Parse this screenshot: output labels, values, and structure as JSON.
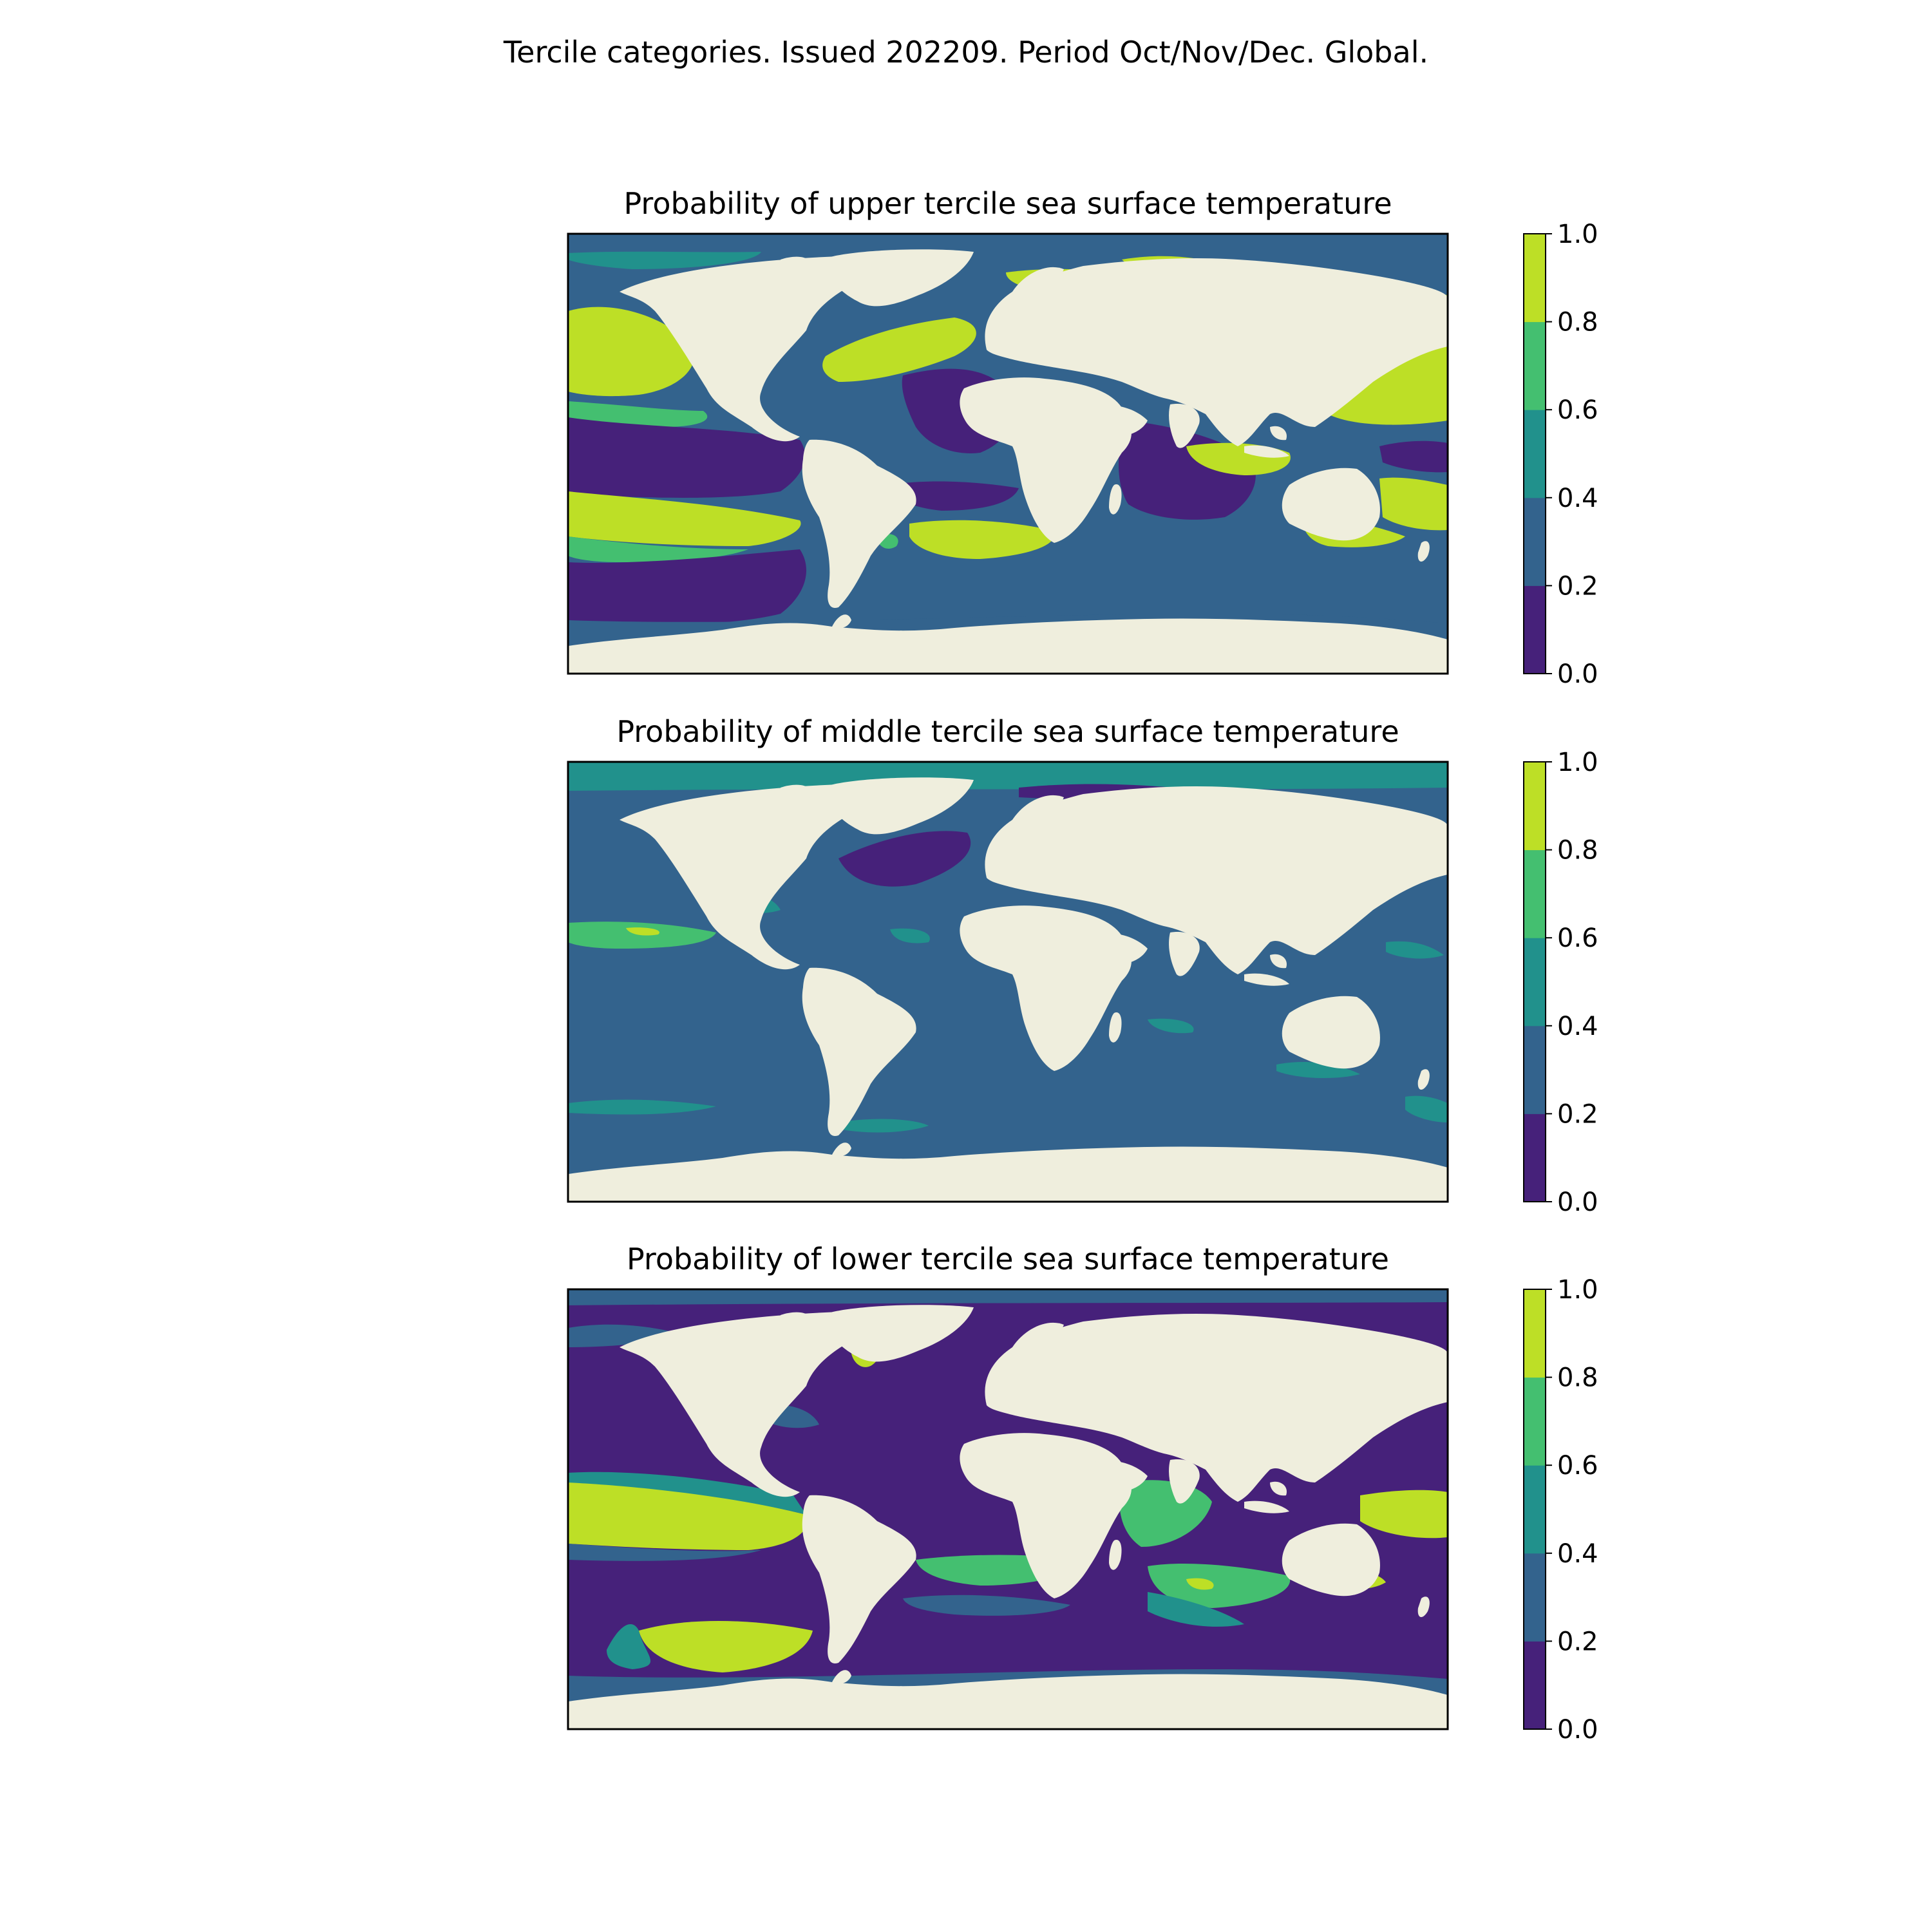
{
  "figure": {
    "title": "Tercile categories. Issued 202209. Period Oct/Nov/Dec. Global."
  },
  "colors": {
    "land": "#efeedd",
    "levels": [
      "#46217a",
      "#33638d",
      "#21918c",
      "#44bf70",
      "#bddf26"
    ]
  },
  "colorbar": {
    "ticks": [
      "0.0",
      "0.2",
      "0.4",
      "0.6",
      "0.8",
      "1.0"
    ]
  },
  "chart_data": [
    {
      "type": "heatmap",
      "title": "Probability of upper tercile sea surface temperature",
      "value_range": [
        0.0,
        1.0
      ],
      "levels": [
        0.0,
        0.2,
        0.4,
        0.6,
        0.8,
        1.0
      ],
      "regions": [
        {
          "area": "North Pacific",
          "level": 0.9
        },
        {
          "area": "Eastern tropical Pacific",
          "level": 0.1
        },
        {
          "area": "South Pacific subtropics",
          "level": 0.9
        },
        {
          "area": "Western Pacific / Maritime continent",
          "level": 0.9
        },
        {
          "area": "North Atlantic",
          "level": 0.9
        },
        {
          "area": "South Atlantic",
          "level": 0.1
        },
        {
          "area": "Indian Ocean",
          "level": 0.1
        },
        {
          "area": "Southern Ocean",
          "level": 0.3
        }
      ]
    },
    {
      "type": "heatmap",
      "title": "Probability of middle tercile sea surface temperature",
      "value_range": [
        0.0,
        1.0
      ],
      "levels": [
        0.0,
        0.2,
        0.4,
        0.6,
        0.8,
        1.0
      ],
      "regions": [
        {
          "area": "Pacific",
          "level": 0.3
        },
        {
          "area": "Central North Pacific band",
          "level": 0.7
        },
        {
          "area": "North Atlantic",
          "level": 0.1
        },
        {
          "area": "Atlantic",
          "level": 0.3
        },
        {
          "area": "Indian Ocean",
          "level": 0.3
        },
        {
          "area": "Southern Ocean",
          "level": 0.3
        }
      ]
    },
    {
      "type": "heatmap",
      "title": "Probability of lower tercile sea surface temperature",
      "value_range": [
        0.0,
        1.0
      ],
      "levels": [
        0.0,
        0.2,
        0.4,
        0.6,
        0.8,
        1.0
      ],
      "regions": [
        {
          "area": "North Pacific",
          "level": 0.1
        },
        {
          "area": "Eastern tropical Pacific",
          "level": 0.9
        },
        {
          "area": "South Pacific",
          "level": 0.9
        },
        {
          "area": "North Atlantic",
          "level": 0.1
        },
        {
          "area": "South Atlantic",
          "level": 0.7
        },
        {
          "area": "Indian Ocean",
          "level": 0.7
        },
        {
          "area": "Western Pacific",
          "level": 0.1
        },
        {
          "area": "Southern Ocean",
          "level": 0.3
        }
      ]
    }
  ]
}
